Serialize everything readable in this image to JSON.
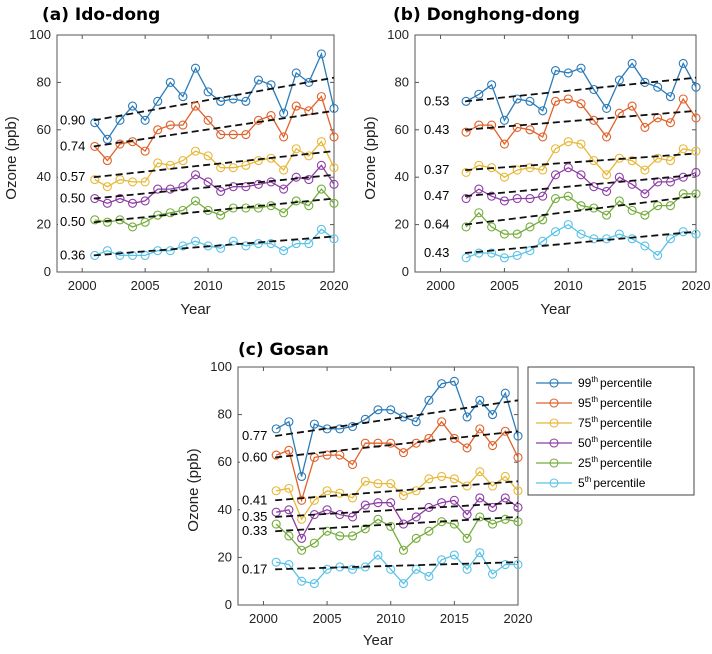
{
  "figure": {
    "percentile_suffix": "percentile"
  },
  "legend": {
    "entries": [
      {
        "num": "99",
        "sup": "th",
        "label": "percentile",
        "color": "#2b7bb9"
      },
      {
        "num": "95",
        "sup": "th",
        "label": "percentile",
        "color": "#e0622b"
      },
      {
        "num": "75",
        "sup": "th",
        "label": "percentile",
        "color": "#e8b83a"
      },
      {
        "num": "50",
        "sup": "th",
        "label": "percentile",
        "color": "#8e3fa6"
      },
      {
        "num": "25",
        "sup": "th",
        "label": "percentile",
        "color": "#75ad3c"
      },
      {
        "num": "5",
        "sup": "th",
        "label": "percentile",
        "color": "#5bc3e8"
      }
    ]
  },
  "chart_data": [
    {
      "type": "line",
      "title": "(a) Ido-dong",
      "xlabel": "Year",
      "ylabel": "Ozone (ppb)",
      "xlim": [
        1998,
        2020
      ],
      "ylim": [
        0,
        100
      ],
      "xticks": [
        2000,
        2005,
        2010,
        2015,
        2020
      ],
      "yticks": [
        0,
        20,
        40,
        60,
        80,
        100
      ],
      "x": [
        2001,
        2002,
        2003,
        2004,
        2005,
        2006,
        2007,
        2008,
        2009,
        2010,
        2011,
        2012,
        2013,
        2014,
        2015,
        2016,
        2017,
        2018,
        2019,
        2020
      ],
      "series": [
        {
          "name": "99th percentile",
          "color": "#2b7bb9",
          "slope_label": "0.90",
          "trend": [
            64,
            82
          ],
          "values": [
            63,
            56,
            64,
            70,
            64,
            72,
            80,
            74,
            86,
            76,
            72,
            73,
            72,
            81,
            79,
            67,
            84,
            80,
            92,
            69
          ]
        },
        {
          "name": "95th percentile",
          "color": "#e0622b",
          "slope_label": "0.74",
          "trend": [
            53,
            68
          ],
          "values": [
            53,
            47,
            54,
            55,
            51,
            60,
            62,
            62,
            70,
            64,
            58,
            58,
            58,
            64,
            66,
            57,
            70,
            68,
            74,
            57
          ]
        },
        {
          "name": "75th percentile",
          "color": "#e8b83a",
          "slope_label": "0.57",
          "trend": [
            40,
            51
          ],
          "values": [
            39,
            36,
            39,
            38,
            38,
            46,
            45,
            47,
            51,
            49,
            44,
            44,
            45,
            47,
            48,
            43,
            52,
            49,
            55,
            44
          ]
        },
        {
          "name": "50th percentile",
          "color": "#8e3fa6",
          "slope_label": "0.50",
          "trend": [
            31,
            41
          ],
          "values": [
            31,
            29,
            31,
            29,
            30,
            35,
            35,
            36,
            41,
            38,
            34,
            36,
            36,
            37,
            38,
            35,
            40,
            39,
            45,
            37
          ]
        },
        {
          "name": "25th percentile",
          "color": "#75ad3c",
          "slope_label": "0.50",
          "trend": [
            21,
            31
          ],
          "values": [
            22,
            21,
            22,
            19,
            21,
            24,
            25,
            26,
            30,
            26,
            24,
            27,
            27,
            27,
            28,
            25,
            30,
            28,
            35,
            29
          ]
        },
        {
          "name": "5th percentile",
          "color": "#5bc3e8",
          "slope_label": "0.36",
          "trend": [
            7,
            15
          ],
          "values": [
            7,
            9,
            7,
            7,
            7,
            9,
            9,
            11,
            13,
            11,
            10,
            13,
            11,
            12,
            12,
            9,
            12,
            12,
            18,
            14
          ]
        }
      ]
    },
    {
      "type": "line",
      "title": "(b) Donghong-dong",
      "xlabel": "Year",
      "ylabel": "Ozone (ppb)",
      "xlim": [
        1998,
        2020
      ],
      "ylim": [
        0,
        100
      ],
      "xticks": [
        2000,
        2005,
        2010,
        2015,
        2020
      ],
      "yticks": [
        0,
        20,
        40,
        60,
        80,
        100
      ],
      "x": [
        2002,
        2003,
        2004,
        2005,
        2006,
        2007,
        2008,
        2009,
        2010,
        2011,
        2012,
        2013,
        2014,
        2015,
        2016,
        2017,
        2018,
        2019,
        2020
      ],
      "series": [
        {
          "name": "99th percentile",
          "color": "#2b7bb9",
          "slope_label": "0.53",
          "trend": [
            72,
            82
          ],
          "values": [
            72,
            75,
            79,
            64,
            73,
            72,
            68,
            85,
            84,
            86,
            77,
            69,
            81,
            88,
            80,
            78,
            74,
            88,
            78
          ]
        },
        {
          "name": "95th percentile",
          "color": "#e0622b",
          "slope_label": "0.43",
          "trend": [
            60,
            68
          ],
          "values": [
            59,
            62,
            62,
            54,
            61,
            60,
            57,
            72,
            73,
            71,
            64,
            57,
            67,
            70,
            61,
            65,
            63,
            73,
            65
          ]
        },
        {
          "name": "75th percentile",
          "color": "#e8b83a",
          "slope_label": "0.37",
          "trend": [
            43,
            50
          ],
          "values": [
            42,
            45,
            44,
            40,
            43,
            44,
            43,
            52,
            55,
            54,
            47,
            41,
            48,
            47,
            43,
            48,
            47,
            52,
            51
          ]
        },
        {
          "name": "50th percentile",
          "color": "#8e3fa6",
          "slope_label": "0.47",
          "trend": [
            32,
            41
          ],
          "values": [
            31,
            35,
            32,
            30,
            31,
            31,
            32,
            41,
            44,
            41,
            36,
            34,
            40,
            37,
            33,
            38,
            38,
            40,
            42
          ]
        },
        {
          "name": "25th percentile",
          "color": "#75ad3c",
          "slope_label": "0.64",
          "trend": [
            20,
            32
          ],
          "values": [
            19,
            25,
            19,
            16,
            16,
            19,
            22,
            31,
            32,
            28,
            27,
            24,
            30,
            26,
            24,
            28,
            28,
            33,
            33
          ]
        },
        {
          "name": "5th percentile",
          "color": "#5bc3e8",
          "slope_label": "0.43",
          "trend": [
            8,
            17
          ],
          "values": [
            6,
            8,
            8,
            6,
            7,
            9,
            13,
            17,
            20,
            16,
            14,
            14,
            16,
            14,
            11,
            7,
            14,
            17,
            16
          ]
        }
      ]
    },
    {
      "type": "line",
      "title": "(c) Gosan",
      "xlabel": "Year",
      "ylabel": "Ozone (ppb)",
      "xlim": [
        1998,
        2020
      ],
      "ylim": [
        0,
        100
      ],
      "xticks": [
        2000,
        2005,
        2010,
        2015,
        2020
      ],
      "yticks": [
        0,
        20,
        40,
        60,
        80,
        100
      ],
      "x": [
        2001,
        2002,
        2003,
        2004,
        2005,
        2006,
        2007,
        2008,
        2009,
        2010,
        2011,
        2012,
        2013,
        2014,
        2015,
        2016,
        2017,
        2018,
        2019,
        2020
      ],
      "series": [
        {
          "name": "99th percentile",
          "color": "#2b7bb9",
          "slope_label": "0.77",
          "trend": [
            71,
            86
          ],
          "values": [
            74,
            77,
            54,
            76,
            74,
            74,
            75,
            78,
            82,
            82,
            79,
            77,
            86,
            93,
            94,
            79,
            86,
            80,
            89,
            71
          ]
        },
        {
          "name": "95th percentile",
          "color": "#e0622b",
          "slope_label": "0.60",
          "trend": [
            62,
            73
          ],
          "values": [
            63,
            65,
            44,
            62,
            63,
            63,
            59,
            68,
            68,
            68,
            64,
            68,
            70,
            77,
            70,
            66,
            74,
            67,
            73,
            62
          ]
        },
        {
          "name": "75th percentile",
          "color": "#e8b83a",
          "slope_label": "0.41",
          "trend": [
            44,
            52
          ],
          "values": [
            48,
            49,
            36,
            44,
            48,
            47,
            45,
            52,
            51,
            51,
            46,
            48,
            53,
            54,
            53,
            50,
            56,
            50,
            54,
            48
          ]
        },
        {
          "name": "50th percentile",
          "color": "#8e3fa6",
          "slope_label": "0.35",
          "trend": [
            37,
            43
          ],
          "values": [
            39,
            40,
            28,
            38,
            40,
            38,
            37,
            42,
            43,
            43,
            34,
            37,
            41,
            43,
            44,
            38,
            45,
            41,
            45,
            41
          ]
        },
        {
          "name": "25th percentile",
          "color": "#75ad3c",
          "slope_label": "0.33",
          "trend": [
            31,
            37
          ],
          "values": [
            34,
            29,
            23,
            26,
            31,
            29,
            29,
            32,
            36,
            33,
            23,
            28,
            31,
            35,
            34,
            28,
            37,
            34,
            36,
            35
          ]
        },
        {
          "name": "5th percentile",
          "color": "#5bc3e8",
          "slope_label": "0.17",
          "trend": [
            15,
            18
          ],
          "values": [
            18,
            17,
            10,
            9,
            15,
            16,
            15,
            16,
            21,
            15,
            9,
            15,
            12,
            19,
            21,
            15,
            22,
            13,
            17,
            17
          ]
        }
      ]
    }
  ]
}
